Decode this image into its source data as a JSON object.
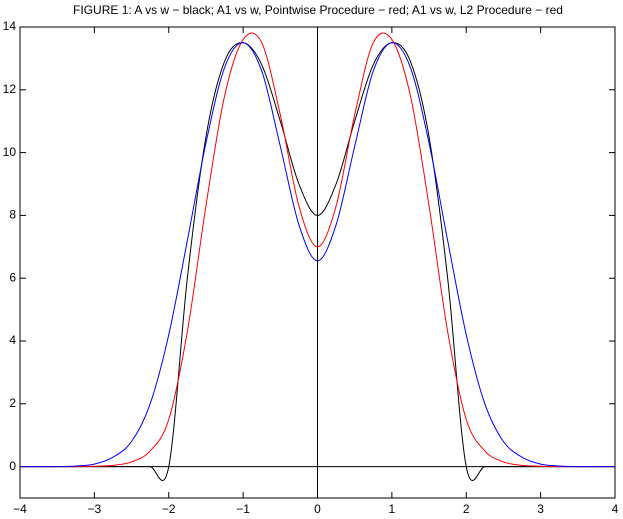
{
  "chart_data": {
    "type": "line",
    "title": "FIGURE 1: A vs w − black; A1 vs w, Pointwise Procedure − red; A1 vs w, L2 Procedure  − red",
    "x": [
      -4,
      -3.75,
      -3.5,
      -3.25,
      -3,
      -2.75,
      -2.5,
      -2.25,
      -2,
      -1.75,
      -1.5,
      -1.25,
      -1,
      -0.75,
      -0.5,
      -0.25,
      0,
      0.25,
      0.5,
      0.75,
      1,
      1.25,
      1.5,
      1.75,
      2,
      2.25,
      2.5,
      2.75,
      3,
      3.25,
      3.5,
      3.75,
      4
    ],
    "series": [
      {
        "color": "#000000",
        "values": [
          0,
          0,
          0,
          0,
          0,
          0,
          0,
          0,
          0,
          6,
          10.5,
          12.9,
          13.5,
          12.8,
          11,
          9,
          8,
          9,
          11,
          12.8,
          13.5,
          12.9,
          10.5,
          6,
          0,
          0,
          0,
          0,
          0,
          0,
          0,
          0,
          0
        ]
      },
      {
        "color": "#ff0000",
        "values": [
          0,
          0,
          0,
          0,
          0.01,
          0.04,
          0.15,
          0.5,
          1.5,
          4.3,
          8.3,
          11.8,
          13.6,
          13.5,
          11.2,
          8.3,
          7,
          8.3,
          11.2,
          13.5,
          13.6,
          11.8,
          8.3,
          4.3,
          1.5,
          0.5,
          0.15,
          0.04,
          0.01,
          0,
          0,
          0,
          0
        ]
      },
      {
        "color": "#0000ff",
        "values": [
          0,
          0,
          0,
          0.02,
          0.08,
          0.3,
          0.8,
          2.0,
          4.2,
          7.2,
          10.3,
          12.7,
          13.5,
          12.6,
          10.2,
          7.7,
          6.55,
          7.7,
          10.2,
          12.6,
          13.5,
          12.7,
          10.3,
          7.2,
          4.2,
          2.0,
          0.8,
          0.3,
          0.08,
          0.02,
          0,
          0,
          0
        ]
      }
    ],
    "xlim": [
      -4,
      4
    ],
    "xticks": [
      {
        "value": -4,
        "label": "−4"
      },
      {
        "value": -3,
        "label": "−3"
      },
      {
        "value": -2,
        "label": "−2"
      },
      {
        "value": -1,
        "label": "−1"
      },
      0,
      1,
      2,
      3,
      4
    ],
    "ylim": [
      -1,
      14
    ],
    "yticks": [
      0,
      2,
      4,
      6,
      8,
      10,
      12,
      14
    ],
    "grid": false
  }
}
